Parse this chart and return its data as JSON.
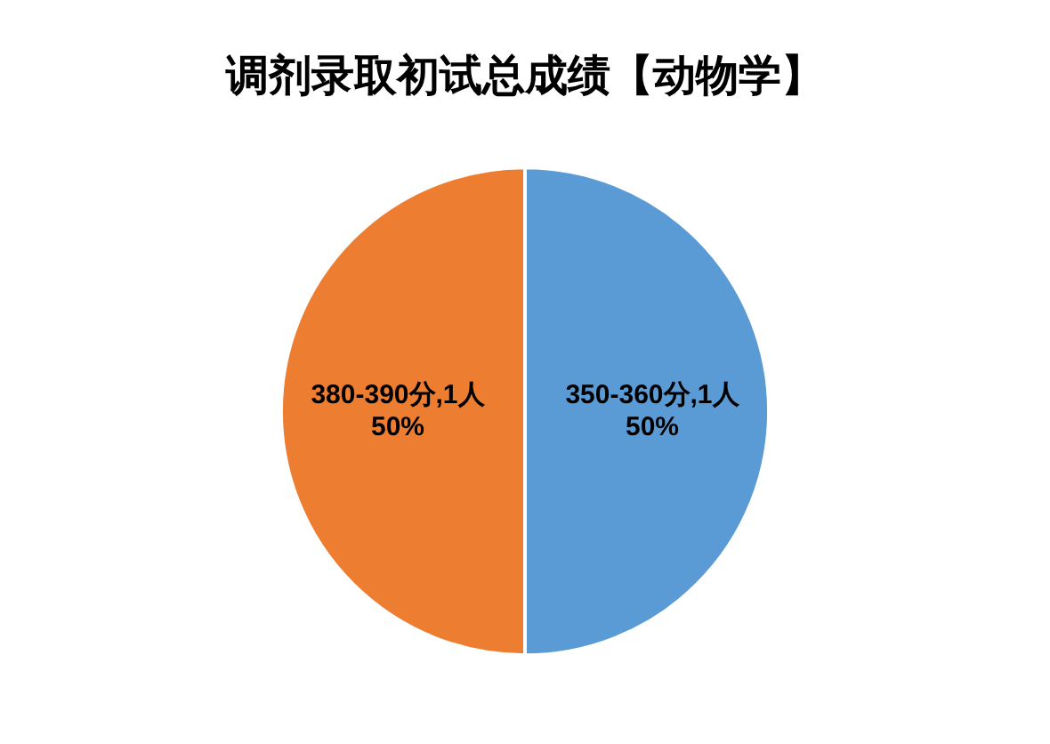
{
  "chart_data": {
    "type": "pie",
    "title": "调剂录取初试总成绩【动物学】",
    "categories": [
      "350-360分,1人",
      "380-390分,1人"
    ],
    "values": [
      50,
      50
    ],
    "colors": [
      "#5b9bd5",
      "#ed7d31"
    ],
    "value_labels": [
      "50%",
      "50%"
    ],
    "legend": false
  }
}
